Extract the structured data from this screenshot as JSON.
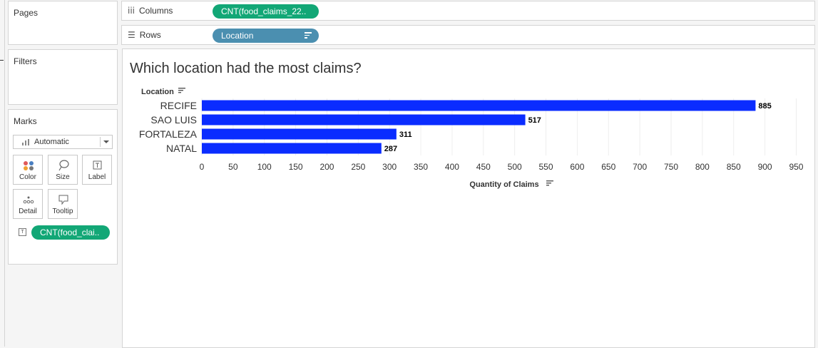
{
  "left_panel": {
    "pages_title": "Pages",
    "filters_title": "Filters",
    "marks_title": "Marks",
    "mark_type": "Automatic",
    "mark_buttons": [
      {
        "label": "Color",
        "icon": "color-dots-icon"
      },
      {
        "label": "Size",
        "icon": "lasso-icon"
      },
      {
        "label": "Label",
        "icon": "text-label-icon"
      },
      {
        "label": "Detail",
        "icon": "detail-dots-icon"
      },
      {
        "label": "Tooltip",
        "icon": "speech-bubble-icon"
      }
    ],
    "marks_field": "CNT(food_clai.."
  },
  "shelves": {
    "columns_label": "Columns",
    "columns_pill": "CNT(food_claims_22..",
    "rows_label": "Rows",
    "rows_pill": "Location"
  },
  "colors": {
    "bar": "#0a2cff",
    "measure_pill": "#12a776",
    "dimension_pill": "#4b8fb0"
  },
  "chart_data": {
    "type": "bar",
    "orientation": "horizontal",
    "title": "Which location had the most claims?",
    "ylabel": "Location",
    "xlabel": "Quantity of Claims",
    "categories": [
      "RECIFE",
      "SAO LUIS",
      "FORTALEZA",
      "NATAL"
    ],
    "values": [
      885,
      517,
      311,
      287
    ],
    "xlim": [
      0,
      970
    ],
    "xticks": [
      0,
      50,
      100,
      150,
      200,
      250,
      300,
      350,
      400,
      450,
      500,
      550,
      600,
      650,
      700,
      750,
      800,
      850,
      900,
      950
    ],
    "grid": true,
    "data_labels": true
  }
}
